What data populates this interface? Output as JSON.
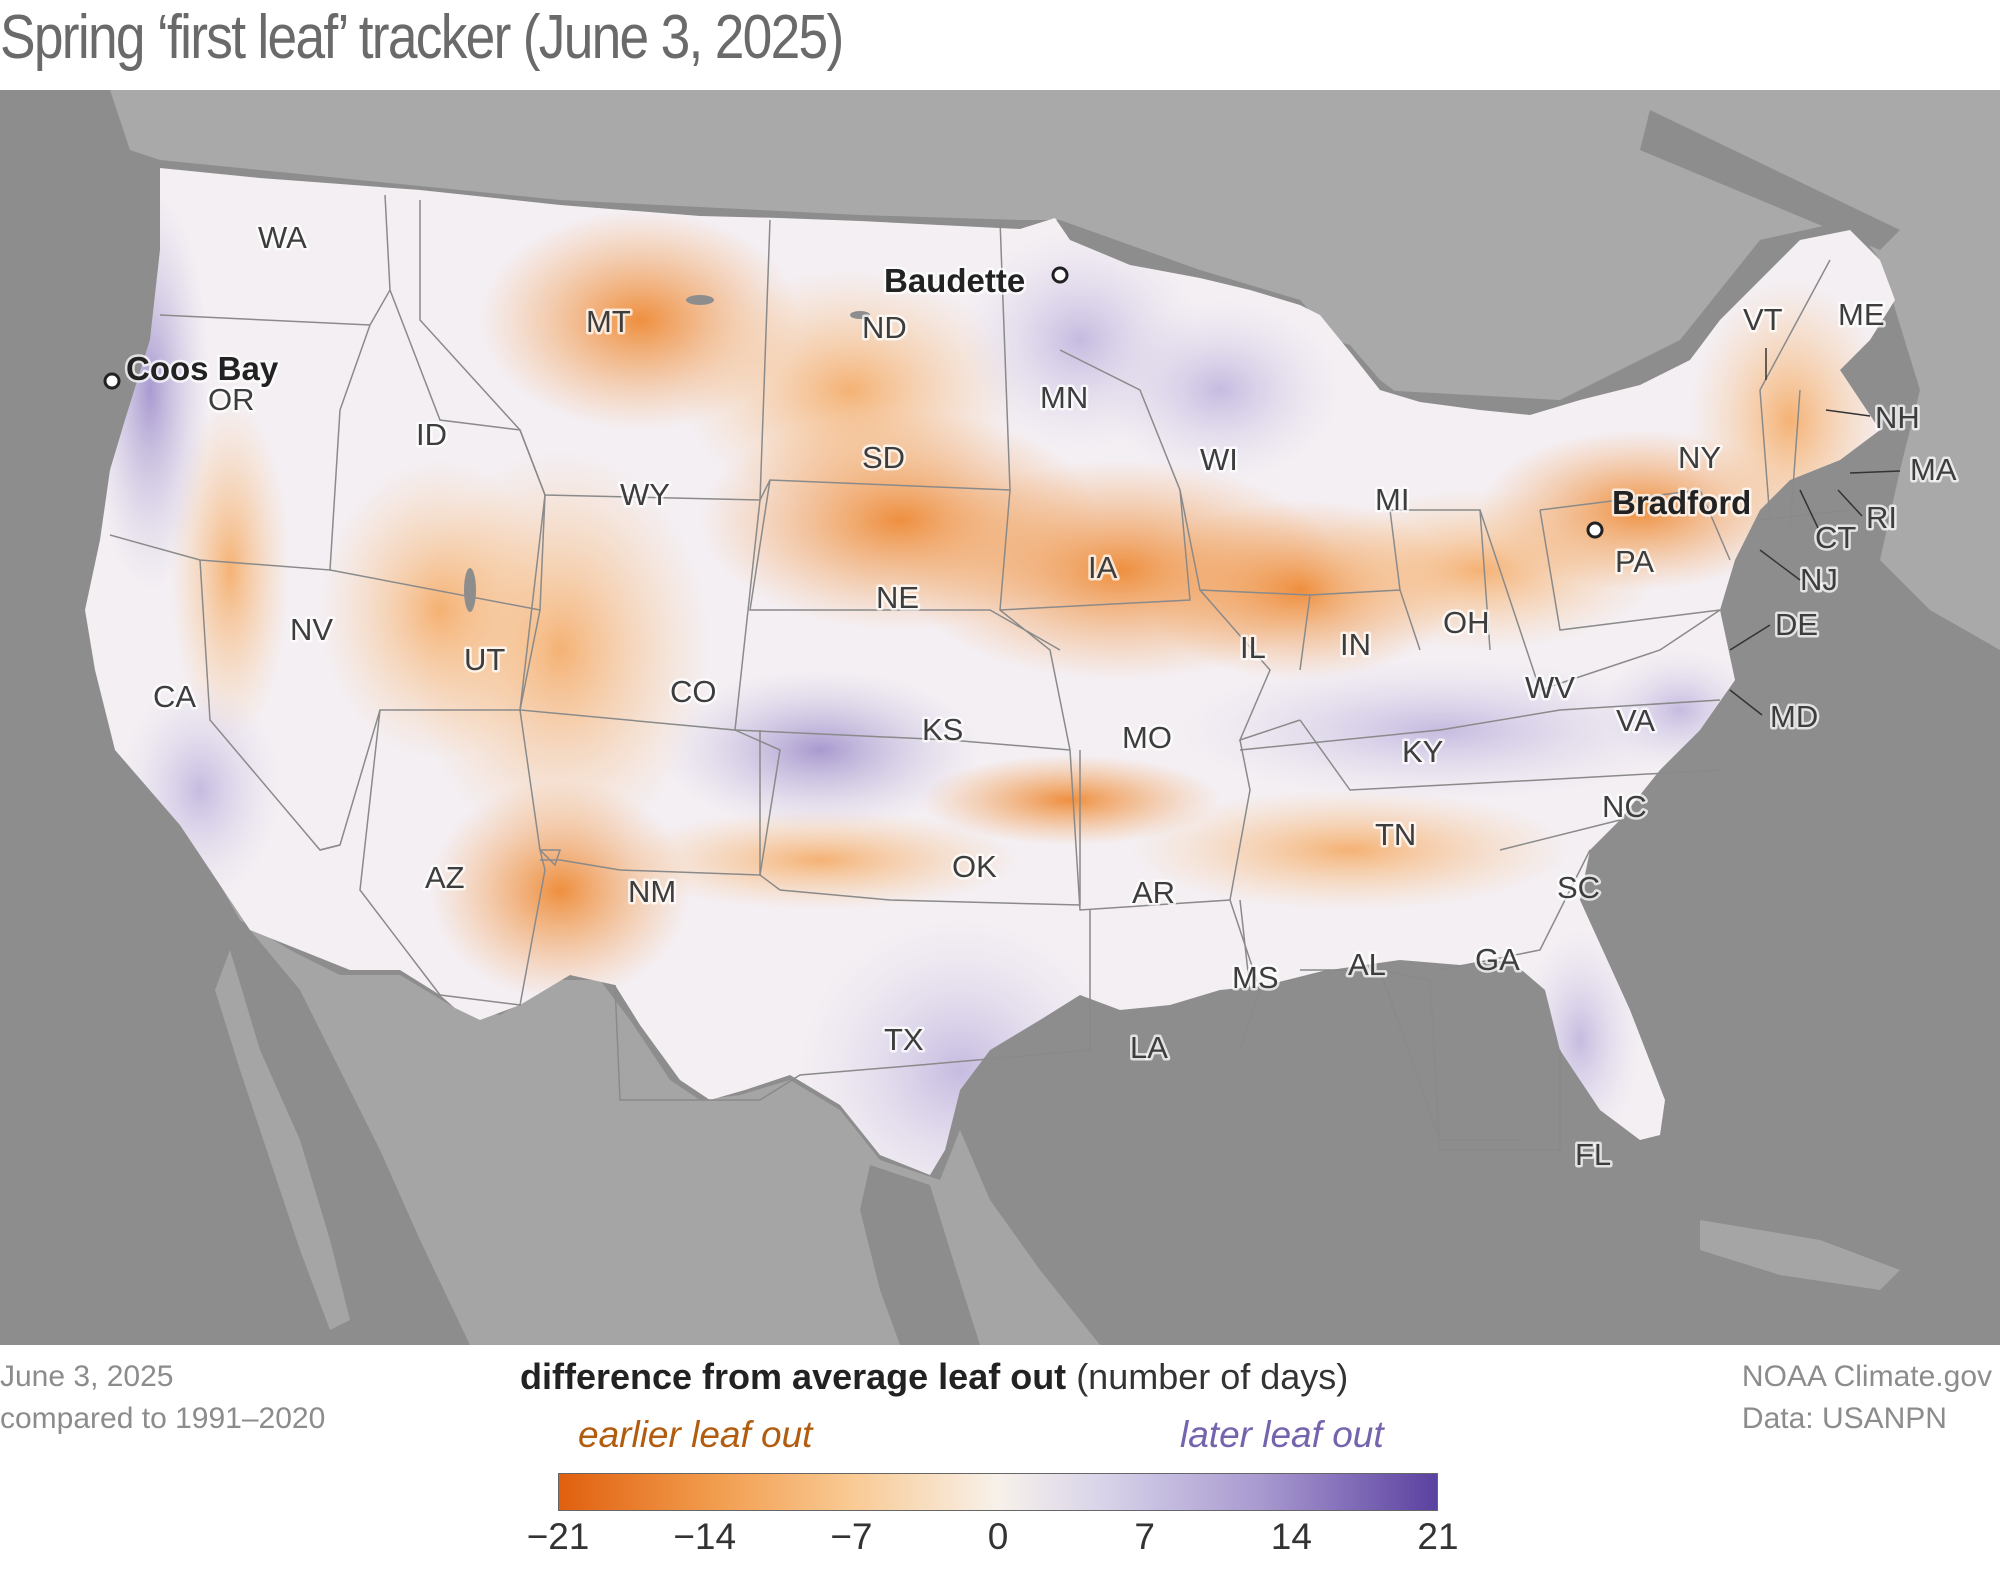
{
  "title": "Spring ‘first leaf’ tracker (June 3, 2025)",
  "footer_left": {
    "line1": "June 3, 2025",
    "line2": "compared to 1991–2020"
  },
  "footer_right": {
    "line1": "NOAA Climate.gov",
    "line2": "Data: USANPN"
  },
  "legend": {
    "title_bold": "difference from average leaf out",
    "title_unit": "(number of days)",
    "earlier_label": "earlier leaf out",
    "later_label": "later leaf out",
    "ticks": [
      "−21",
      "−14",
      "−7",
      "0",
      "7",
      "14",
      "21"
    ],
    "range": [
      -21,
      21
    ],
    "colors": {
      "earliest": "#e0600f",
      "neutral": "#f7f1ea",
      "latest": "#5b41a0"
    }
  },
  "states": [
    {
      "id": "WA",
      "label": "WA"
    },
    {
      "id": "OR",
      "label": "OR"
    },
    {
      "id": "CA",
      "label": "CA"
    },
    {
      "id": "ID",
      "label": "ID"
    },
    {
      "id": "NV",
      "label": "NV"
    },
    {
      "id": "MT",
      "label": "MT"
    },
    {
      "id": "WY",
      "label": "WY"
    },
    {
      "id": "UT",
      "label": "UT"
    },
    {
      "id": "AZ",
      "label": "AZ"
    },
    {
      "id": "CO",
      "label": "CO"
    },
    {
      "id": "NM",
      "label": "NM"
    },
    {
      "id": "ND",
      "label": "ND"
    },
    {
      "id": "SD",
      "label": "SD"
    },
    {
      "id": "NE",
      "label": "NE"
    },
    {
      "id": "KS",
      "label": "KS"
    },
    {
      "id": "OK",
      "label": "OK"
    },
    {
      "id": "TX",
      "label": "TX"
    },
    {
      "id": "MN",
      "label": "MN"
    },
    {
      "id": "IA",
      "label": "IA"
    },
    {
      "id": "MO",
      "label": "MO"
    },
    {
      "id": "AR",
      "label": "AR"
    },
    {
      "id": "LA",
      "label": "LA"
    },
    {
      "id": "WI",
      "label": "WI"
    },
    {
      "id": "IL",
      "label": "IL"
    },
    {
      "id": "MI",
      "label": "MI"
    },
    {
      "id": "IN",
      "label": "IN"
    },
    {
      "id": "OH",
      "label": "OH"
    },
    {
      "id": "KY",
      "label": "KY"
    },
    {
      "id": "TN",
      "label": "TN"
    },
    {
      "id": "MS",
      "label": "MS"
    },
    {
      "id": "AL",
      "label": "AL"
    },
    {
      "id": "GA",
      "label": "GA"
    },
    {
      "id": "FL",
      "label": "FL"
    },
    {
      "id": "SC",
      "label": "SC"
    },
    {
      "id": "NC",
      "label": "NC"
    },
    {
      "id": "VA",
      "label": "VA"
    },
    {
      "id": "WV",
      "label": "WV"
    },
    {
      "id": "PA",
      "label": "PA"
    },
    {
      "id": "NY",
      "label": "NY"
    },
    {
      "id": "VT",
      "label": "VT"
    },
    {
      "id": "ME",
      "label": "ME"
    },
    {
      "id": "NH",
      "label": "NH"
    },
    {
      "id": "MA",
      "label": "MA"
    },
    {
      "id": "RI",
      "label": "RI"
    },
    {
      "id": "CT",
      "label": "CT"
    },
    {
      "id": "NJ",
      "label": "NJ"
    },
    {
      "id": "DE",
      "label": "DE"
    },
    {
      "id": "MD",
      "label": "MD"
    }
  ],
  "cities": [
    {
      "id": "coos-bay",
      "label": "Coos Bay"
    },
    {
      "id": "baudette",
      "label": "Baudette"
    },
    {
      "id": "bradford",
      "label": "Bradford"
    }
  ]
}
